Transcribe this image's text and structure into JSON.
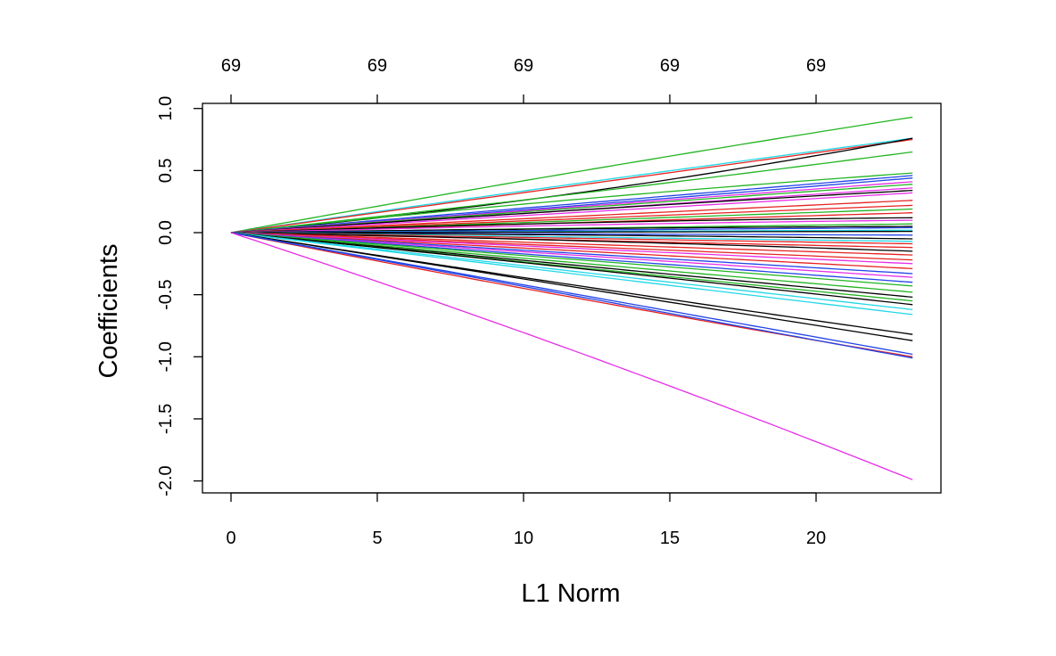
{
  "chart_data": {
    "type": "line",
    "title": "",
    "xlabel": "L1 Norm",
    "ylabel": "Coefficients",
    "xlim": [
      0,
      23.3
    ],
    "ylim": [
      -2.0,
      1.0
    ],
    "x_ticks": [
      0,
      5,
      10,
      15,
      20
    ],
    "x_tick_labels": [
      "0",
      "5",
      "10",
      "15",
      "20"
    ],
    "y_ticks": [
      -2.0,
      -1.5,
      -1.0,
      -0.5,
      0.0,
      0.5,
      1.0
    ],
    "y_tick_labels": [
      "-2.0",
      "-1.5",
      "-1.0",
      "-0.5",
      "0.0",
      "0.5",
      "1.0"
    ],
    "top_ticks": [
      0,
      5,
      10,
      15,
      20
    ],
    "top_tick_labels": [
      "69",
      "69",
      "69",
      "69",
      "69"
    ],
    "grid": false,
    "legend": "none",
    "x_end": 23.3,
    "note": "Coefficient paths: each series value is the coefficient at the right end (x = 23.3); paths start at 0 at x = 0 and curve with the given curvature.",
    "series": [
      {
        "name": "path-1",
        "color": "#22b522",
        "end": 0.93,
        "curv": -0.08
      },
      {
        "name": "path-2",
        "color": "#22d8e6",
        "end": 0.76,
        "curv": -0.05
      },
      {
        "name": "path-3",
        "color": "#e62222",
        "end": 0.75,
        "curv": 0.0
      },
      {
        "name": "path-4",
        "color": "#000000",
        "end": 0.76,
        "curv": 0.35
      },
      {
        "name": "path-5",
        "color": "#22b522",
        "end": 0.65,
        "curv": 0.1
      },
      {
        "name": "path-6",
        "color": "#22b522",
        "end": 0.48,
        "curv": -0.2
      },
      {
        "name": "path-7",
        "color": "#2244e6",
        "end": 0.46,
        "curv": 0.0
      },
      {
        "name": "path-8",
        "color": "#2244e6",
        "end": 0.44,
        "curv": 0.05
      },
      {
        "name": "path-9",
        "color": "#e62ee6",
        "end": 0.41,
        "curv": 0.0
      },
      {
        "name": "path-10",
        "color": "#22b522",
        "end": 0.39,
        "curv": 0.0
      },
      {
        "name": "path-11",
        "color": "#e62ee6",
        "end": 0.36,
        "curv": 0.0
      },
      {
        "name": "path-12",
        "color": "#000000",
        "end": 0.34,
        "curv": -0.1
      },
      {
        "name": "path-13",
        "color": "#e62ee6",
        "end": 0.32,
        "curv": 0.0
      },
      {
        "name": "path-14",
        "color": "#e62222",
        "end": 0.26,
        "curv": 0.0
      },
      {
        "name": "path-15",
        "color": "#e62222",
        "end": 0.22,
        "curv": 0.0
      },
      {
        "name": "path-16",
        "color": "#22b522",
        "end": 0.19,
        "curv": 0.0
      },
      {
        "name": "path-17",
        "color": "#e62222",
        "end": 0.16,
        "curv": 0.0
      },
      {
        "name": "path-18",
        "color": "#000000",
        "end": 0.12,
        "curv": -0.6
      },
      {
        "name": "path-19",
        "color": "#e62ee6",
        "end": 0.1,
        "curv": -0.4
      },
      {
        "name": "path-20",
        "color": "#22b522",
        "end": 0.07,
        "curv": 0.0
      },
      {
        "name": "path-21",
        "color": "#000000",
        "end": 0.05,
        "curv": -0.5
      },
      {
        "name": "path-22",
        "color": "#2244e6",
        "end": 0.04,
        "curv": 0.0
      },
      {
        "name": "path-23",
        "color": "#22d8e6",
        "end": 0.02,
        "curv": 0.0
      },
      {
        "name": "path-24",
        "color": "#000000",
        "end": 0.01,
        "curv": 0.0
      },
      {
        "name": "path-25",
        "color": "#2244e6",
        "end": -0.02,
        "curv": 0.0
      },
      {
        "name": "path-26",
        "color": "#000000",
        "end": -0.05,
        "curv": 0.5
      },
      {
        "name": "path-27",
        "color": "#22d8e6",
        "end": -0.07,
        "curv": 0.0
      },
      {
        "name": "path-28",
        "color": "#e62222",
        "end": -0.09,
        "curv": 0.0
      },
      {
        "name": "path-29",
        "color": "#e62222",
        "end": -0.12,
        "curv": 0.0
      },
      {
        "name": "path-30",
        "color": "#000000",
        "end": -0.15,
        "curv": 0.3
      },
      {
        "name": "path-31",
        "color": "#e62222",
        "end": -0.18,
        "curv": 0.0
      },
      {
        "name": "path-32",
        "color": "#e62222",
        "end": -0.22,
        "curv": 0.0
      },
      {
        "name": "path-33",
        "color": "#e62ee6",
        "end": -0.25,
        "curv": 0.0
      },
      {
        "name": "path-34",
        "color": "#e62222",
        "end": -0.29,
        "curv": 0.0
      },
      {
        "name": "path-35",
        "color": "#2244e6",
        "end": -0.33,
        "curv": 0.0
      },
      {
        "name": "path-36",
        "color": "#e62ee6",
        "end": -0.36,
        "curv": 0.0
      },
      {
        "name": "path-37",
        "color": "#2244e6",
        "end": -0.4,
        "curv": 0.0
      },
      {
        "name": "path-38",
        "color": "#22b522",
        "end": -0.43,
        "curv": 0.0
      },
      {
        "name": "path-39",
        "color": "#22b522",
        "end": -0.48,
        "curv": 0.0
      },
      {
        "name": "path-40",
        "color": "#000000",
        "end": -0.52,
        "curv": 0.0
      },
      {
        "name": "path-41",
        "color": "#22b522",
        "end": -0.55,
        "curv": 0.0
      },
      {
        "name": "path-42",
        "color": "#000000",
        "end": -0.58,
        "curv": 0.05
      },
      {
        "name": "path-43",
        "color": "#22d8e6",
        "end": -0.62,
        "curv": 0.0
      },
      {
        "name": "path-44",
        "color": "#22d8e6",
        "end": -0.66,
        "curv": 0.0
      },
      {
        "name": "path-45",
        "color": "#000000",
        "end": -0.82,
        "curv": -0.05
      },
      {
        "name": "path-46",
        "color": "#000000",
        "end": -0.87,
        "curv": 0.0
      },
      {
        "name": "path-47",
        "color": "#2244e6",
        "end": -0.98,
        "curv": 0.0
      },
      {
        "name": "path-48",
        "color": "#e62222",
        "end": -1.0,
        "curv": -0.08
      },
      {
        "name": "path-49",
        "color": "#2244e6",
        "end": -1.01,
        "curv": 0.0
      },
      {
        "name": "path-50",
        "color": "#e62ee6",
        "end": -1.99,
        "curv": 0.1
      }
    ]
  }
}
